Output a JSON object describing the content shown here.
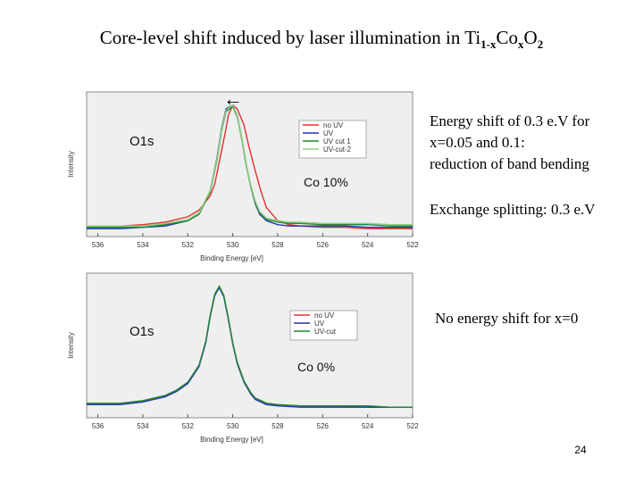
{
  "slide": {
    "title_prefix": "Core-level shift induced by laser illumination in Ti",
    "title_sub1": "1-x",
    "title_mid": "Co",
    "title_sub2": "x",
    "title_o": "O",
    "title_sub3": "2",
    "note_top_1": "Energy shift of 0.3 e.V for",
    "note_top_2": "x=0.05 and 0.1:",
    "note_top_3": "reduction of band bending",
    "note_exchange": "Exchange splitting: 0.3 e.V",
    "note_bottom": "No energy shift for x=0",
    "page_number": "24"
  },
  "chart_data": [
    {
      "type": "line",
      "label": "O1s",
      "sample_label": "Co 10%",
      "arrow": "←",
      "xlabel": "Binding Energy [eV]",
      "ylabel": "Intensity",
      "xlim": [
        536.5,
        522
      ],
      "ylim": [
        0,
        1.1
      ],
      "x_ticks": [
        536,
        534,
        532,
        530,
        528,
        526,
        524,
        522
      ],
      "legend_position": "top-right",
      "series": [
        {
          "name": "no UV",
          "color": "#e53030",
          "x": [
            536.5,
            535,
            534,
            533,
            532,
            531.5,
            531,
            530.8,
            530.5,
            530.3,
            530.2,
            530,
            529.8,
            529.5,
            529.3,
            529,
            528.7,
            528.5,
            528,
            527.5,
            527,
            526,
            525,
            524,
            523,
            522
          ],
          "y": [
            0.08,
            0.08,
            0.09,
            0.11,
            0.15,
            0.2,
            0.31,
            0.4,
            0.65,
            0.82,
            0.92,
            1.0,
            0.97,
            0.85,
            0.7,
            0.5,
            0.32,
            0.22,
            0.12,
            0.09,
            0.08,
            0.07,
            0.07,
            0.06,
            0.06,
            0.06
          ]
        },
        {
          "name": "UV",
          "color": "#2233aa",
          "x": [
            536.5,
            535,
            534,
            533,
            532,
            531.5,
            531,
            530.7,
            530.5,
            530.3,
            530,
            529.8,
            529.6,
            529.4,
            529.2,
            529,
            528.8,
            528.5,
            528,
            527.5,
            527,
            526,
            525,
            524,
            523,
            522
          ],
          "y": [
            0.06,
            0.06,
            0.07,
            0.08,
            0.12,
            0.17,
            0.35,
            0.6,
            0.82,
            0.97,
            1.0,
            0.92,
            0.75,
            0.55,
            0.38,
            0.25,
            0.17,
            0.12,
            0.09,
            0.08,
            0.08,
            0.08,
            0.08,
            0.07,
            0.07,
            0.07
          ]
        },
        {
          "name": "UV cut 1",
          "color": "#1e8a3a",
          "x": [
            536.5,
            535,
            534,
            533,
            532,
            531.5,
            531,
            530.7,
            530.5,
            530.3,
            530,
            529.8,
            529.6,
            529.4,
            529.2,
            529,
            528.8,
            528.5,
            528,
            527.5,
            527,
            526,
            525,
            524,
            523,
            522
          ],
          "y": [
            0.07,
            0.07,
            0.07,
            0.09,
            0.12,
            0.17,
            0.34,
            0.58,
            0.8,
            0.95,
            0.99,
            0.91,
            0.74,
            0.54,
            0.38,
            0.26,
            0.18,
            0.13,
            0.11,
            0.1,
            0.1,
            0.09,
            0.09,
            0.09,
            0.08,
            0.08
          ]
        },
        {
          "name": "UV-cut-2",
          "color": "#8fd07f",
          "x": [
            536.5,
            535,
            534,
            533,
            532,
            531.5,
            531,
            530.7,
            530.5,
            530.3,
            530,
            529.8,
            529.6,
            529.4,
            529.2,
            529,
            528.8,
            528.5,
            528,
            527.5,
            527,
            526,
            525,
            524,
            523,
            522
          ],
          "y": [
            0.08,
            0.08,
            0.08,
            0.1,
            0.13,
            0.18,
            0.35,
            0.59,
            0.81,
            0.96,
            1.0,
            0.92,
            0.75,
            0.55,
            0.39,
            0.27,
            0.19,
            0.14,
            0.12,
            0.11,
            0.11,
            0.1,
            0.1,
            0.1,
            0.09,
            0.09
          ]
        }
      ]
    },
    {
      "type": "line",
      "label": "O1s",
      "sample_label": "Co 0%",
      "xlabel": "Binding Energy [eV]",
      "ylabel": "Intensity",
      "xlim": [
        536.5,
        522
      ],
      "ylim": [
        0,
        1.1
      ],
      "x_ticks": [
        536,
        534,
        532,
        530,
        528,
        526,
        524,
        522
      ],
      "legend_position": "top-right",
      "series": [
        {
          "name": "no UV",
          "color": "#e53030",
          "x": [
            536.5,
            535,
            534,
            533,
            532.5,
            532,
            531.5,
            531.2,
            531,
            530.8,
            530.6,
            530.4,
            530.2,
            530,
            529.8,
            529.5,
            529.2,
            529,
            528.5,
            528,
            527,
            526,
            525,
            524,
            523,
            522
          ],
          "y": [
            0.11,
            0.11,
            0.13,
            0.17,
            0.21,
            0.27,
            0.4,
            0.58,
            0.78,
            0.94,
            1.0,
            0.93,
            0.76,
            0.57,
            0.42,
            0.28,
            0.19,
            0.15,
            0.11,
            0.1,
            0.09,
            0.09,
            0.09,
            0.08,
            0.08,
            0.08
          ]
        },
        {
          "name": "UV",
          "color": "#2233aa",
          "x": [
            536.5,
            535,
            534,
            533,
            532.5,
            532,
            531.5,
            531.2,
            531,
            530.8,
            530.6,
            530.4,
            530.2,
            530,
            529.8,
            529.5,
            529.2,
            529,
            528.5,
            528,
            527,
            526,
            525,
            524,
            523,
            522
          ],
          "y": [
            0.1,
            0.1,
            0.12,
            0.16,
            0.2,
            0.26,
            0.39,
            0.57,
            0.77,
            0.93,
            0.99,
            0.92,
            0.75,
            0.56,
            0.41,
            0.27,
            0.18,
            0.14,
            0.1,
            0.09,
            0.08,
            0.08,
            0.08,
            0.08,
            0.08,
            0.08
          ]
        },
        {
          "name": "UV-cut",
          "color": "#1e8a3a",
          "x": [
            536.5,
            535,
            534,
            533,
            532.5,
            532,
            531.5,
            531.2,
            531,
            530.8,
            530.6,
            530.4,
            530.2,
            530,
            529.8,
            529.5,
            529.2,
            529,
            528.5,
            528,
            527,
            526,
            525,
            524,
            523,
            522
          ],
          "y": [
            0.11,
            0.11,
            0.13,
            0.17,
            0.21,
            0.27,
            0.4,
            0.58,
            0.78,
            0.94,
            1.0,
            0.93,
            0.76,
            0.57,
            0.42,
            0.28,
            0.19,
            0.15,
            0.11,
            0.1,
            0.09,
            0.09,
            0.09,
            0.09,
            0.08,
            0.08
          ]
        }
      ]
    }
  ]
}
